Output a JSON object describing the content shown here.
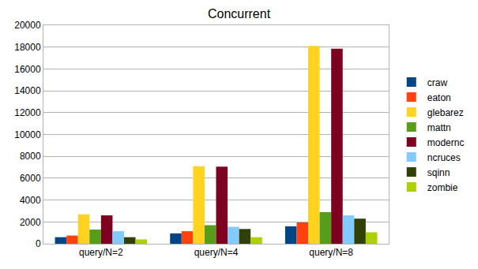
{
  "chart_data": {
    "type": "bar",
    "title": "Concurrent",
    "categories": [
      "query/N=2",
      "query/N=4",
      "query/N=8"
    ],
    "series": [
      {
        "name": "craw",
        "color": "#004586",
        "values": [
          600,
          950,
          1600
        ]
      },
      {
        "name": "eaton",
        "color": "#ff420e",
        "values": [
          750,
          1150,
          1950
        ]
      },
      {
        "name": "glebarez",
        "color": "#ffd320",
        "values": [
          2700,
          7100,
          18100
        ]
      },
      {
        "name": "mattn",
        "color": "#579d1c",
        "values": [
          1300,
          1700,
          2900
        ]
      },
      {
        "name": "modernc",
        "color": "#7e0021",
        "values": [
          2600,
          7050,
          17850
        ]
      },
      {
        "name": "ncruces",
        "color": "#83caff",
        "values": [
          1150,
          1550,
          2600
        ]
      },
      {
        "name": "sqinn",
        "color": "#314004",
        "values": [
          600,
          1350,
          2300
        ]
      },
      {
        "name": "zombie",
        "color": "#aecf00",
        "values": [
          400,
          600,
          1050
        ]
      }
    ],
    "ylim": [
      0,
      20000
    ],
    "yticks": [
      0,
      2000,
      4000,
      6000,
      8000,
      10000,
      12000,
      14000,
      16000,
      18000,
      20000
    ],
    "grid": true,
    "legend": "right"
  }
}
